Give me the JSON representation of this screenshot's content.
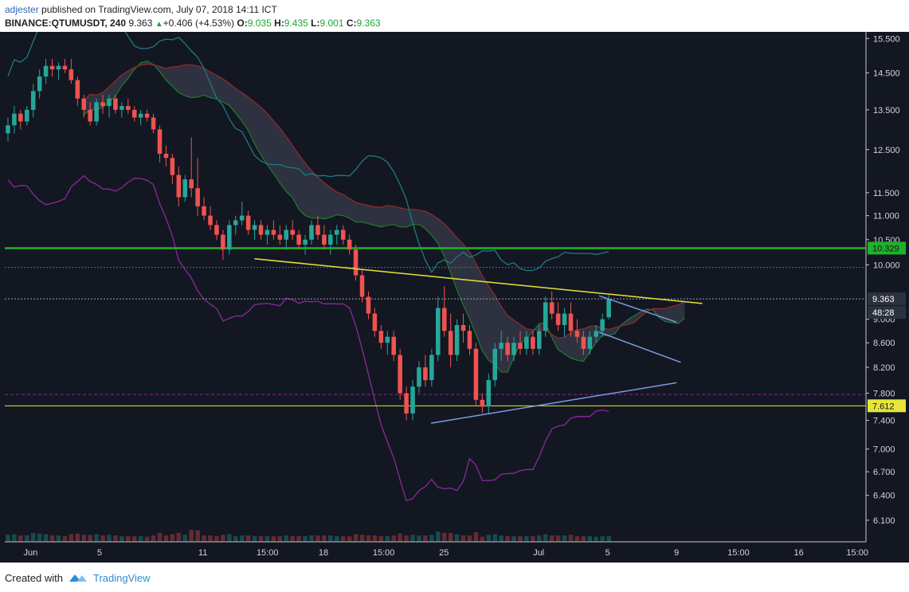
{
  "header": {
    "user": "adjester",
    "published_text": " published on TradingView.com, July 07, 2018 14:11 ICT",
    "symbol": "BINANCE:QTUMUSDT, 240",
    "last": "9.363",
    "change": "+0.406 (+4.53%)",
    "o_label": "O:",
    "o_value": "9.035",
    "h_label": "H:",
    "h_value": "9.435",
    "l_label": "L:",
    "l_value": "9.001",
    "c_label": "C:",
    "c_value": "9.363"
  },
  "footer": {
    "created": "Created with",
    "brand": "TradingView"
  },
  "colors": {
    "background": "#131722",
    "bull": "#26a69a",
    "bear": "#ef5350",
    "green_line": "#21b02a",
    "yellow_line": "#e5e53a",
    "blue_line": "#7b9ae0",
    "purple_band": "#8a2a9b",
    "teal_band": "#1f7a80",
    "cloud": "#3a3d4d"
  },
  "chart_data": {
    "type": "candlestick",
    "yscale": "log",
    "ylim": [
      5.85,
      15.7
    ],
    "y_ticks": [
      "15.500",
      "14.500",
      "13.500",
      "12.500",
      "11.500",
      "11.000",
      "10.500",
      "10.000",
      "9.000",
      "8.600",
      "8.200",
      "7.800",
      "7.400",
      "7.000",
      "6.700",
      "6.400",
      "6.100"
    ],
    "x_ticks": [
      "Jun",
      "5",
      "11",
      "15:00",
      "18",
      "15:00",
      "25",
      "Jul",
      "5",
      "9",
      "15:00",
      "16",
      "15:00"
    ],
    "x_tick_pos": [
      0.03,
      0.11,
      0.23,
      0.305,
      0.37,
      0.44,
      0.51,
      0.62,
      0.7,
      0.78,
      0.852,
      0.922,
      0.99
    ],
    "price_labels": [
      {
        "label": "10.329",
        "value": 10.329,
        "color": "#21b02a"
      },
      {
        "label": "9.363",
        "value": 9.363,
        "color": "#ffffff"
      },
      {
        "label": "48:28",
        "value": null,
        "color": "#ffffff"
      },
      {
        "label": "7.612",
        "value": 7.612,
        "color": "#e5e53a"
      }
    ],
    "horizontal_levels": [
      {
        "value": 10.329,
        "style": "solid",
        "color": "#21b02a"
      },
      {
        "value": 9.95,
        "style": "dotted",
        "color": "#2b7f86"
      },
      {
        "value": 9.363,
        "style": "dotted",
        "color": "#9aa4b0"
      },
      {
        "value": 7.78,
        "style": "dashed",
        "color": "#8a2a9b"
      },
      {
        "value": 7.612,
        "style": "solid",
        "color": "#e5e53a"
      }
    ],
    "trendlines": [
      {
        "color": "#e5e53a",
        "from": [
          0.29,
          10.12
        ],
        "to": [
          0.81,
          9.28
        ]
      },
      {
        "color": "#7b9ae0",
        "from": [
          0.495,
          7.36
        ],
        "to": [
          0.78,
          7.96
        ]
      },
      {
        "color": "#7b9ae0",
        "from": [
          0.69,
          9.42
        ],
        "to": [
          0.78,
          8.95
        ]
      },
      {
        "color": "#7b9ae0",
        "from": [
          0.69,
          8.78
        ],
        "to": [
          0.785,
          8.28
        ]
      }
    ],
    "candles": [
      {
        "o": 12.9,
        "h": 13.3,
        "l": 12.7,
        "c": 13.1
      },
      {
        "o": 13.1,
        "h": 13.6,
        "l": 12.9,
        "c": 13.4
      },
      {
        "o": 13.4,
        "h": 13.5,
        "l": 13.0,
        "c": 13.2
      },
      {
        "o": 13.2,
        "h": 13.6,
        "l": 13.1,
        "c": 13.5
      },
      {
        "o": 13.5,
        "h": 14.2,
        "l": 13.3,
        "c": 14.0
      },
      {
        "o": 14.0,
        "h": 14.6,
        "l": 13.8,
        "c": 14.4
      },
      {
        "o": 14.4,
        "h": 14.9,
        "l": 14.2,
        "c": 14.7
      },
      {
        "o": 14.7,
        "h": 14.9,
        "l": 14.4,
        "c": 14.6
      },
      {
        "o": 14.6,
        "h": 14.8,
        "l": 14.3,
        "c": 14.7
      },
      {
        "o": 14.7,
        "h": 14.9,
        "l": 14.5,
        "c": 14.6
      },
      {
        "o": 14.6,
        "h": 14.9,
        "l": 14.2,
        "c": 14.3
      },
      {
        "o": 14.3,
        "h": 14.4,
        "l": 13.6,
        "c": 13.8
      },
      {
        "o": 13.8,
        "h": 13.9,
        "l": 13.3,
        "c": 13.5
      },
      {
        "o": 13.5,
        "h": 13.7,
        "l": 13.1,
        "c": 13.2
      },
      {
        "o": 13.2,
        "h": 13.8,
        "l": 13.1,
        "c": 13.7
      },
      {
        "o": 13.7,
        "h": 13.9,
        "l": 13.4,
        "c": 13.6
      },
      {
        "o": 13.6,
        "h": 13.9,
        "l": 13.3,
        "c": 13.8
      },
      {
        "o": 13.8,
        "h": 13.9,
        "l": 13.4,
        "c": 13.5
      },
      {
        "o": 13.5,
        "h": 13.7,
        "l": 13.3,
        "c": 13.6
      },
      {
        "o": 13.6,
        "h": 13.8,
        "l": 13.4,
        "c": 13.5
      },
      {
        "o": 13.5,
        "h": 13.6,
        "l": 13.2,
        "c": 13.3
      },
      {
        "o": 13.3,
        "h": 13.5,
        "l": 13.1,
        "c": 13.4
      },
      {
        "o": 13.4,
        "h": 13.5,
        "l": 13.2,
        "c": 13.3
      },
      {
        "o": 13.3,
        "h": 13.4,
        "l": 12.9,
        "c": 13.0
      },
      {
        "o": 13.0,
        "h": 13.1,
        "l": 12.2,
        "c": 12.4
      },
      {
        "o": 12.4,
        "h": 12.6,
        "l": 12.1,
        "c": 12.3
      },
      {
        "o": 12.3,
        "h": 12.4,
        "l": 11.7,
        "c": 11.9
      },
      {
        "o": 11.9,
        "h": 12.1,
        "l": 11.2,
        "c": 11.4
      },
      {
        "o": 11.4,
        "h": 11.9,
        "l": 11.3,
        "c": 11.8
      },
      {
        "o": 11.8,
        "h": 12.8,
        "l": 11.4,
        "c": 11.6
      },
      {
        "o": 11.6,
        "h": 12.3,
        "l": 11.0,
        "c": 11.2
      },
      {
        "o": 11.2,
        "h": 11.4,
        "l": 10.9,
        "c": 11.0
      },
      {
        "o": 11.0,
        "h": 11.2,
        "l": 10.7,
        "c": 10.8
      },
      {
        "o": 10.8,
        "h": 10.9,
        "l": 10.5,
        "c": 10.6
      },
      {
        "o": 10.6,
        "h": 10.7,
        "l": 10.1,
        "c": 10.3
      },
      {
        "o": 10.3,
        "h": 10.9,
        "l": 10.2,
        "c": 10.8
      },
      {
        "o": 10.8,
        "h": 11.0,
        "l": 10.6,
        "c": 10.9
      },
      {
        "o": 10.9,
        "h": 11.3,
        "l": 10.8,
        "c": 11.0
      },
      {
        "o": 11.0,
        "h": 11.1,
        "l": 10.6,
        "c": 10.7
      },
      {
        "o": 10.7,
        "h": 10.9,
        "l": 10.5,
        "c": 10.8
      },
      {
        "o": 10.8,
        "h": 10.9,
        "l": 10.5,
        "c": 10.6
      },
      {
        "o": 10.6,
        "h": 10.8,
        "l": 10.4,
        "c": 10.7
      },
      {
        "o": 10.7,
        "h": 10.9,
        "l": 10.5,
        "c": 10.6
      },
      {
        "o": 10.6,
        "h": 10.8,
        "l": 10.4,
        "c": 10.5
      },
      {
        "o": 10.5,
        "h": 10.8,
        "l": 10.3,
        "c": 10.7
      },
      {
        "o": 10.7,
        "h": 10.9,
        "l": 10.5,
        "c": 10.6
      },
      {
        "o": 10.6,
        "h": 10.7,
        "l": 10.3,
        "c": 10.4
      },
      {
        "o": 10.4,
        "h": 10.6,
        "l": 10.2,
        "c": 10.5
      },
      {
        "o": 10.5,
        "h": 10.9,
        "l": 10.4,
        "c": 10.8
      },
      {
        "o": 10.8,
        "h": 11.0,
        "l": 10.5,
        "c": 10.6
      },
      {
        "o": 10.6,
        "h": 10.8,
        "l": 10.3,
        "c": 10.4
      },
      {
        "o": 10.4,
        "h": 10.7,
        "l": 10.2,
        "c": 10.6
      },
      {
        "o": 10.6,
        "h": 10.8,
        "l": 10.4,
        "c": 10.7
      },
      {
        "o": 10.7,
        "h": 10.8,
        "l": 10.4,
        "c": 10.5
      },
      {
        "o": 10.5,
        "h": 10.6,
        "l": 10.2,
        "c": 10.3
      },
      {
        "o": 10.3,
        "h": 10.4,
        "l": 9.7,
        "c": 9.8
      },
      {
        "o": 9.8,
        "h": 9.9,
        "l": 9.3,
        "c": 9.4
      },
      {
        "o": 9.4,
        "h": 9.5,
        "l": 9.0,
        "c": 9.1
      },
      {
        "o": 9.1,
        "h": 9.2,
        "l": 8.7,
        "c": 8.8
      },
      {
        "o": 8.8,
        "h": 8.9,
        "l": 8.5,
        "c": 8.6
      },
      {
        "o": 8.6,
        "h": 8.8,
        "l": 8.4,
        "c": 8.7
      },
      {
        "o": 8.7,
        "h": 8.8,
        "l": 8.3,
        "c": 8.4
      },
      {
        "o": 8.4,
        "h": 8.5,
        "l": 7.7,
        "c": 7.8
      },
      {
        "o": 7.8,
        "h": 7.9,
        "l": 7.4,
        "c": 7.5
      },
      {
        "o": 7.5,
        "h": 8.0,
        "l": 7.4,
        "c": 7.9
      },
      {
        "o": 7.9,
        "h": 8.3,
        "l": 7.8,
        "c": 8.2
      },
      {
        "o": 8.2,
        "h": 8.4,
        "l": 7.9,
        "c": 8.0
      },
      {
        "o": 8.0,
        "h": 8.5,
        "l": 7.9,
        "c": 8.4
      },
      {
        "o": 8.4,
        "h": 9.4,
        "l": 8.3,
        "c": 9.2
      },
      {
        "o": 9.2,
        "h": 9.6,
        "l": 8.7,
        "c": 8.8
      },
      {
        "o": 8.8,
        "h": 9.1,
        "l": 8.2,
        "c": 8.4
      },
      {
        "o": 8.4,
        "h": 9.0,
        "l": 8.3,
        "c": 8.9
      },
      {
        "o": 8.9,
        "h": 9.1,
        "l": 8.6,
        "c": 8.8
      },
      {
        "o": 8.8,
        "h": 8.9,
        "l": 8.4,
        "c": 8.5
      },
      {
        "o": 8.5,
        "h": 8.6,
        "l": 7.6,
        "c": 7.7
      },
      {
        "o": 7.7,
        "h": 7.8,
        "l": 7.5,
        "c": 7.6
      },
      {
        "o": 7.6,
        "h": 8.1,
        "l": 7.5,
        "c": 8.0
      },
      {
        "o": 8.0,
        "h": 8.6,
        "l": 7.9,
        "c": 8.5
      },
      {
        "o": 8.5,
        "h": 8.8,
        "l": 8.3,
        "c": 8.6
      },
      {
        "o": 8.6,
        "h": 8.7,
        "l": 8.3,
        "c": 8.4
      },
      {
        "o": 8.4,
        "h": 8.7,
        "l": 8.3,
        "c": 8.6
      },
      {
        "o": 8.6,
        "h": 8.8,
        "l": 8.4,
        "c": 8.5
      },
      {
        "o": 8.5,
        "h": 8.8,
        "l": 8.4,
        "c": 8.7
      },
      {
        "o": 8.7,
        "h": 8.8,
        "l": 8.4,
        "c": 8.5
      },
      {
        "o": 8.5,
        "h": 8.9,
        "l": 8.4,
        "c": 8.8
      },
      {
        "o": 8.8,
        "h": 9.4,
        "l": 8.7,
        "c": 9.3
      },
      {
        "o": 9.3,
        "h": 9.5,
        "l": 9.0,
        "c": 9.1
      },
      {
        "o": 9.1,
        "h": 9.3,
        "l": 8.8,
        "c": 8.9
      },
      {
        "o": 8.9,
        "h": 9.2,
        "l": 8.7,
        "c": 9.1
      },
      {
        "o": 9.1,
        "h": 9.3,
        "l": 8.7,
        "c": 8.8
      },
      {
        "o": 8.8,
        "h": 9.0,
        "l": 8.6,
        "c": 8.7
      },
      {
        "o": 8.7,
        "h": 8.8,
        "l": 8.4,
        "c": 8.5
      },
      {
        "o": 8.5,
        "h": 8.8,
        "l": 8.4,
        "c": 8.7
      },
      {
        "o": 8.7,
        "h": 8.9,
        "l": 8.6,
        "c": 8.8
      },
      {
        "o": 8.8,
        "h": 9.1,
        "l": 8.7,
        "c": 9.0
      },
      {
        "o": 9.035,
        "h": 9.435,
        "l": 9.001,
        "c": 9.363
      }
    ]
  }
}
